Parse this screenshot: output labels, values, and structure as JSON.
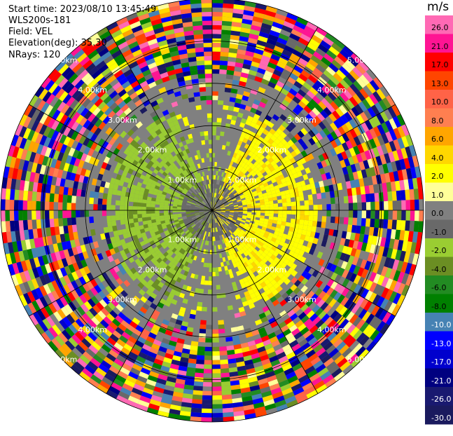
{
  "header": {
    "start_time": "Start time: 2023/08/10 13:45:49",
    "instrument": "WLS200s-181",
    "field": "Field: VEL",
    "elevation": "Elevation(deg): 35.30",
    "nrays": "NRays: 120"
  },
  "chart_data": {
    "type": "heatmap",
    "projection": "polar-ppi",
    "field": "VEL",
    "nrays": 120,
    "unit": "m/s",
    "range_ring_labels": [
      "1.00km",
      "2.00km",
      "3.00km",
      "4.00km",
      "5.00km"
    ],
    "range_rings_km": [
      1,
      2,
      3,
      4,
      5
    ],
    "max_range_km": 5.0,
    "colorbar": {
      "unit": "m/s",
      "ticks": [
        "26.0",
        "21.0",
        "17.0",
        "13.0",
        "10.0",
        "8.0",
        "6.0",
        "4.0",
        "2.0",
        "1.0",
        "0.0",
        "-1.0",
        "-2.0",
        "-4.0",
        "-6.0",
        "-8.0",
        "-10.0",
        "-13.0",
        "-17.0",
        "-21.0",
        "-26.0",
        "-30.0"
      ],
      "colors": [
        "#ff69b4",
        "#ff1493",
        "#ff0000",
        "#ff4500",
        "#ff6347",
        "#ff7f50",
        "#ffa500",
        "#ffd700",
        "#ffff00",
        "#ffff99",
        "#808080",
        "#696969",
        "#9acd32",
        "#6b8e23",
        "#228b22",
        "#008000",
        "#4682b4",
        "#0000ff",
        "#0000cd",
        "#000080",
        "#191970",
        "#1a1a5e"
      ]
    },
    "velocity_pattern": {
      "near_field_colors": [
        "#ffff00",
        "#ffd700",
        "#9acd32",
        "#6b8e23",
        "#808080"
      ],
      "positive_sector_deg": [
        20,
        160
      ],
      "negative_sector_deg": [
        200,
        340
      ]
    }
  }
}
